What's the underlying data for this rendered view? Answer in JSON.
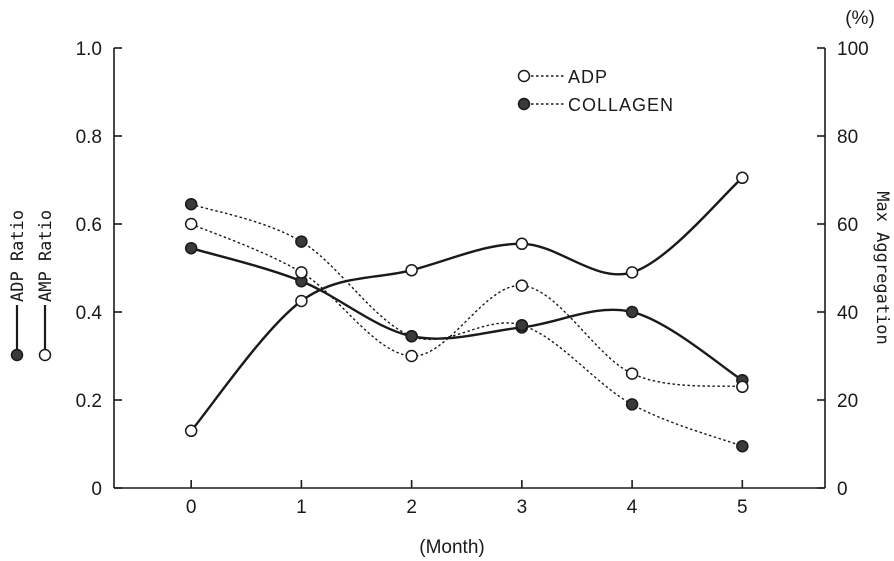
{
  "chart_data": {
    "type": "line",
    "x": [
      0,
      1,
      2,
      3,
      4,
      5
    ],
    "xlabel": "(Month)",
    "xlim": [
      -0.7,
      5.75
    ],
    "left_axis": {
      "ylim": [
        0,
        1.0
      ],
      "ticks": [
        "0",
        "0.2",
        "0.4",
        "0.6",
        "0.8",
        "1.0"
      ],
      "tick_values": [
        0,
        0.2,
        0.4,
        0.6,
        0.8,
        1.0
      ],
      "label_adp": "ADP Ratio",
      "label_amp": "AMP Ratio"
    },
    "right_axis": {
      "ylim": [
        0,
        100
      ],
      "ticks": [
        "0",
        "20",
        "40",
        "60",
        "80",
        "100"
      ],
      "tick_values": [
        0,
        20,
        40,
        60,
        80,
        100
      ],
      "label": "Max Aggregation",
      "unit": "(%)"
    },
    "series": [
      {
        "name": "ADP Ratio",
        "axis": "left",
        "marker": "filled",
        "line": "solid",
        "values": [
          0.545,
          0.47,
          0.345,
          0.365,
          0.4,
          0.245
        ]
      },
      {
        "name": "AMP Ratio",
        "axis": "left",
        "marker": "open",
        "line": "solid",
        "values": [
          0.13,
          0.425,
          0.495,
          0.555,
          0.49,
          0.705
        ]
      },
      {
        "name": "ADP",
        "axis": "right",
        "marker": "open",
        "line": "dotted",
        "values": [
          60,
          49,
          30,
          46,
          26,
          23
        ]
      },
      {
        "name": "COLLAGEN",
        "axis": "right",
        "marker": "filled",
        "line": "dotted",
        "values": [
          64.5,
          56,
          34.5,
          37,
          19,
          9.5
        ]
      }
    ],
    "legend": {
      "placement": "top-right",
      "entries": [
        {
          "label": "ADP",
          "marker": "open"
        },
        {
          "label": "COLLAGEN",
          "marker": "filled"
        }
      ]
    },
    "grid": false,
    "colors": {
      "ink": "#1a1a1a",
      "background": "#ffffff"
    }
  }
}
